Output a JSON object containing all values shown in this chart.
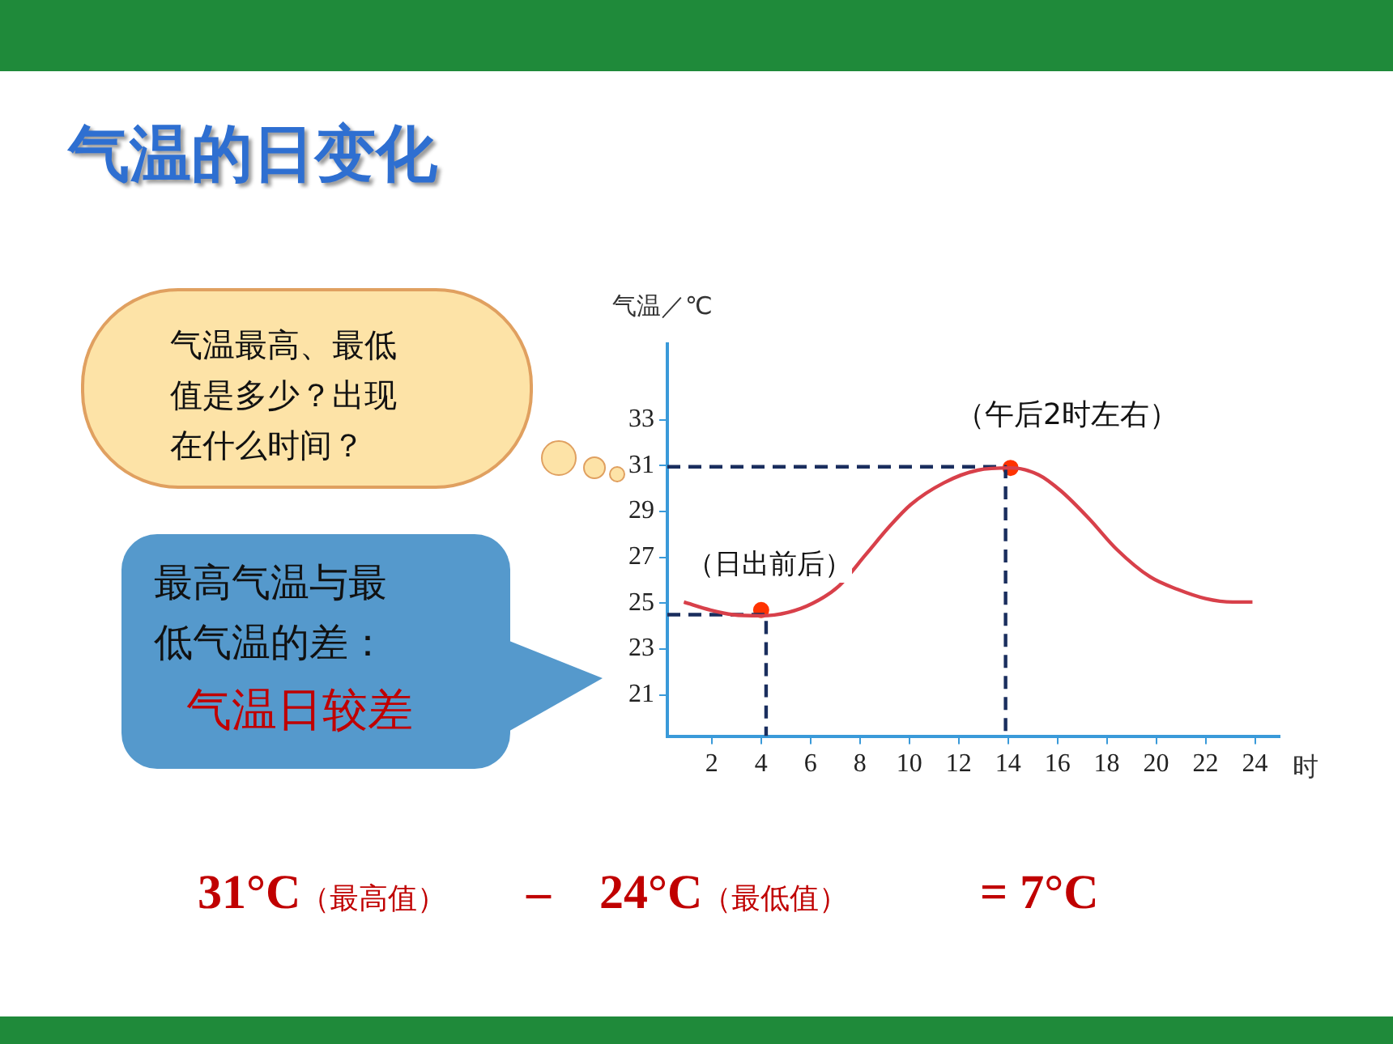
{
  "chart_data": {
    "type": "line",
    "title": "气温的日变化",
    "xlabel": "时",
    "ylabel": "气温／℃",
    "xlim": [
      0.2,
      25
    ],
    "xticks": [
      2,
      4,
      6,
      8,
      10,
      12,
      14,
      16,
      18,
      20,
      22,
      24
    ],
    "ylim": [
      19.2,
      36.3
    ],
    "yticks": [
      21,
      23,
      25,
      27,
      29,
      31,
      33
    ],
    "grid": false,
    "marker": "none",
    "line_style": "solid",
    "series": [
      {
        "type": "line",
        "color": "#d8404a",
        "x": [
          0.87,
          1.95,
          2.86,
          3.98,
          5.1,
          6.1,
          7.1,
          8.26,
          9.16,
          10.06,
          11.4,
          12.77,
          14.1,
          15.24,
          16.14,
          17.27,
          18.4,
          19.75,
          20.87,
          22.0,
          23.1,
          23.9
        ],
        "values": [
          25.05,
          24.7,
          24.5,
          24.45,
          24.6,
          25.0,
          25.7,
          27.15,
          28.3,
          29.3,
          30.25,
          30.8,
          30.9,
          30.6,
          29.9,
          28.7,
          27.35,
          26.15,
          25.6,
          25.2,
          25.05,
          25.05
        ]
      },
      {
        "type": "line",
        "color": "#1a2e5e",
        "line_style": "dashed",
        "x": [
          0.2,
          4.2,
          4.2
        ],
        "values": [
          24.5,
          24.5,
          19.2
        ]
      },
      {
        "type": "line",
        "color": "#1a2e5e",
        "line_style": "dashed",
        "x": [
          0.2,
          13.9,
          13.9
        ],
        "values": [
          30.95,
          30.95,
          19.2
        ]
      },
      {
        "type": "scatter",
        "color": "#ff3300",
        "marker": "circle",
        "x": [
          4,
          14.1
        ],
        "values": [
          24.7,
          30.9
        ]
      }
    ],
    "annotations": [
      "（日出前后）",
      "（午后2时左右）",
      "气温最高、最低值是多少？出现在什么时间？",
      "最高气温与最低气温的差：",
      "气温日较差",
      "31°C（最高值）",
      "–",
      "24°C（最低值）",
      "= 7°C"
    ]
  }
}
